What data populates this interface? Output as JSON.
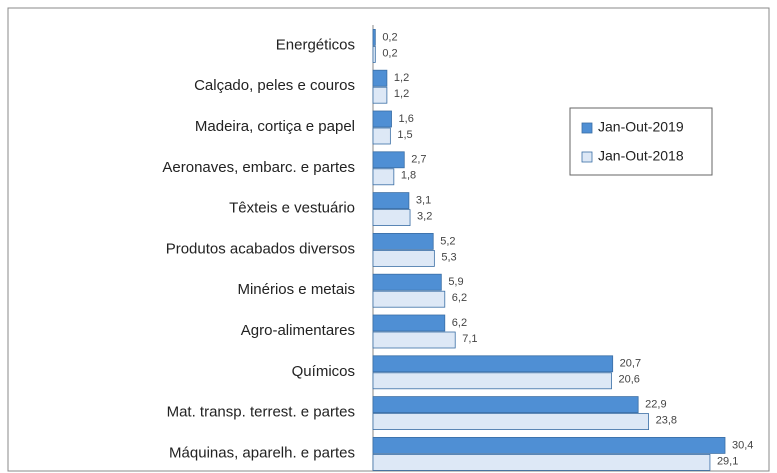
{
  "chart_data": {
    "type": "hbar",
    "categories": [
      "Energéticos",
      "Calçado, peles e couros",
      "Madeira, cortiça e papel",
      "Aeronaves, embarc. e partes",
      "Têxteis e vestuário",
      "Produtos acabados diversos",
      "Minérios e metais",
      "Agro-alimentares",
      "Químicos",
      "Mat. transp. terrest. e partes",
      "Máquinas, aparelh. e partes"
    ],
    "series": [
      {
        "name": "Jan-Out-2019",
        "color": "#4f8fd4",
        "values": [
          0.2,
          1.2,
          1.6,
          2.7,
          3.1,
          5.2,
          5.9,
          6.2,
          20.7,
          22.9,
          30.4
        ],
        "value_labels": [
          "0,2",
          "1,2",
          "1,6",
          "2,7",
          "3,1",
          "5,2",
          "5,9",
          "6,2",
          "20,7",
          "22,9",
          "30,4"
        ]
      },
      {
        "name": "Jan-Out-2018",
        "color": "#dde8f6",
        "values": [
          0.2,
          1.2,
          1.5,
          1.8,
          3.2,
          5.3,
          6.2,
          7.1,
          20.6,
          23.8,
          29.1
        ],
        "value_labels": [
          "0,2",
          "1,2",
          "1,5",
          "1,8",
          "3,2",
          "5,3",
          "6,2",
          "7,1",
          "20,6",
          "23,8",
          "29,1"
        ]
      }
    ]
  }
}
